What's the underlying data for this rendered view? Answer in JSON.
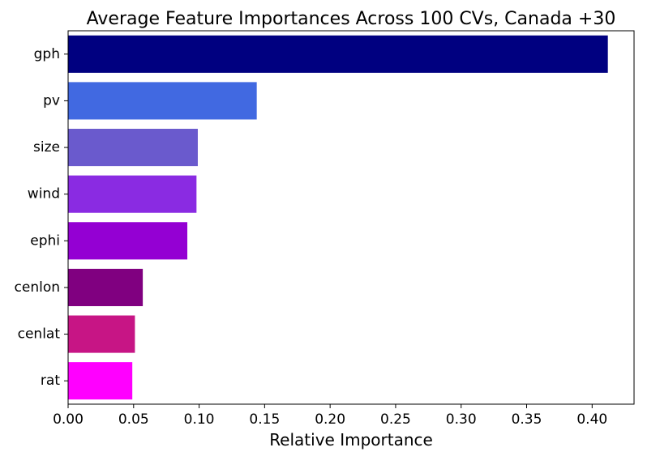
{
  "chart_data": {
    "type": "bar",
    "orientation": "horizontal",
    "title": "Average Feature Importances Across 100 CVs, Canada +30",
    "xlabel": "Relative Importance",
    "ylabel": "",
    "xlim": [
      0,
      0.432
    ],
    "xticks": [
      "0.00",
      "0.05",
      "0.10",
      "0.15",
      "0.20",
      "0.25",
      "0.30",
      "0.35",
      "0.40"
    ],
    "grid": false,
    "categories": [
      "gph",
      "pv",
      "size",
      "wind",
      "ephi",
      "cenlon",
      "cenlat",
      "rat"
    ],
    "values": [
      0.412,
      0.144,
      0.099,
      0.098,
      0.091,
      0.057,
      0.051,
      0.049
    ],
    "colors": [
      "#000080",
      "#4169e1",
      "#6a5acd",
      "#8a2be2",
      "#9400d3",
      "#800080",
      "#c71585",
      "#ff00ff"
    ]
  }
}
